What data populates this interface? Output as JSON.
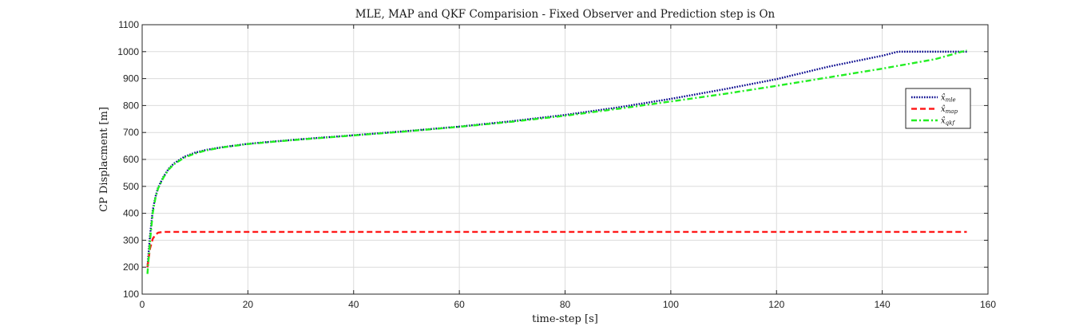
{
  "chart_data": {
    "type": "line",
    "title": "MLE, MAP and QKF Comparision - Fixed Observer and Prediction step is On",
    "xlabel": "time-step [s]",
    "ylabel": "CP Displacment [m]",
    "xlim": [
      0,
      160
    ],
    "ylim": [
      100,
      1100
    ],
    "xticks": [
      0,
      20,
      40,
      60,
      80,
      100,
      120,
      140,
      160
    ],
    "yticks": [
      100,
      200,
      300,
      400,
      500,
      600,
      700,
      800,
      900,
      1000,
      1100
    ],
    "grid": true,
    "legend_position": "right",
    "series": [
      {
        "name": "x̂",
        "name_sub": "mle",
        "color": "#00008b",
        "dash": "dotted",
        "x": [
          1,
          1.5,
          2,
          2.5,
          3,
          4,
          5,
          6,
          8,
          10,
          12,
          15,
          20,
          25,
          30,
          40,
          50,
          60,
          70,
          80,
          90,
          100,
          110,
          120,
          130,
          140,
          143,
          150,
          156
        ],
        "y": [
          200,
          320,
          410,
          460,
          495,
          535,
          565,
          585,
          610,
          625,
          635,
          645,
          658,
          667,
          675,
          690,
          705,
          722,
          742,
          765,
          793,
          825,
          860,
          898,
          945,
          985,
          1000,
          1000,
          1000
        ]
      },
      {
        "name": "x̂",
        "name_sub": "map",
        "color": "#ff1a1a",
        "dash": "dashed",
        "x": [
          1,
          1.5,
          2,
          2.5,
          3,
          4,
          10,
          20,
          40,
          60,
          80,
          100,
          120,
          140,
          156
        ],
        "y": [
          200,
          270,
          305,
          320,
          328,
          331,
          331,
          331,
          331,
          331,
          331,
          331,
          331,
          331,
          331
        ]
      },
      {
        "name": "x̂",
        "name_sub": "qkf",
        "color": "#22ee22",
        "dash": "dashdot",
        "x": [
          1,
          1.5,
          2,
          2.5,
          3,
          4,
          5,
          6,
          8,
          10,
          12,
          15,
          20,
          25,
          30,
          40,
          50,
          60,
          70,
          80,
          90,
          100,
          110,
          120,
          130,
          140,
          150,
          156
        ],
        "y": [
          175,
          300,
          400,
          455,
          492,
          532,
          562,
          582,
          607,
          622,
          633,
          644,
          657,
          666,
          674,
          689,
          704,
          721,
          740,
          762,
          788,
          815,
          843,
          873,
          905,
          937,
          972,
          1005
        ]
      }
    ]
  }
}
